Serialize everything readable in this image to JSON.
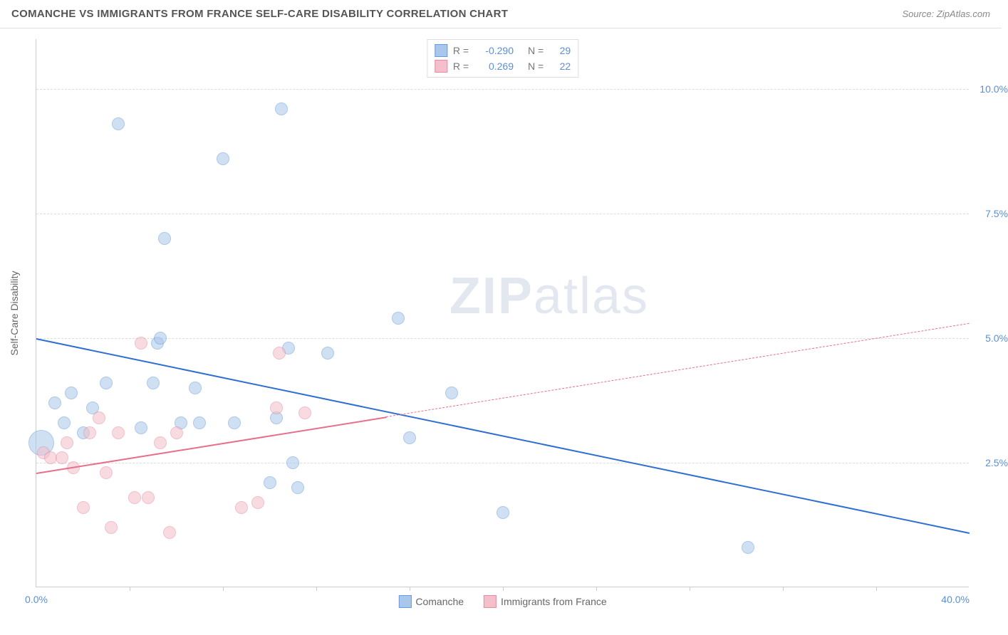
{
  "header": {
    "title": "COMANCHE VS IMMIGRANTS FROM FRANCE SELF-CARE DISABILITY CORRELATION CHART",
    "source_prefix": "Source: ",
    "source_link": "ZipAtlas.com"
  },
  "watermark": {
    "zip": "ZIP",
    "atlas": "atlas"
  },
  "chart": {
    "type": "scatter",
    "ylabel": "Self-Care Disability",
    "xlim": [
      0,
      40
    ],
    "ylim": [
      0,
      11
    ],
    "y_ticks": [
      {
        "v": 2.5,
        "label": "2.5%"
      },
      {
        "v": 5.0,
        "label": "5.0%"
      },
      {
        "v": 7.5,
        "label": "7.5%"
      },
      {
        "v": 10.0,
        "label": "10.0%"
      }
    ],
    "x_corner_left": "0.0%",
    "x_corner_right": "40.0%",
    "x_tick_positions": [
      4,
      8,
      12,
      16,
      20,
      24,
      28,
      32,
      36
    ],
    "background_color": "#ffffff",
    "grid_color": "#dddddd",
    "axis_color": "#cccccc",
    "tick_label_color": "#5b8fd6",
    "point_radius": 9,
    "point_opacity": 0.55,
    "series": [
      {
        "key": "comanche",
        "label": "Comanche",
        "fill": "#a9c7ea",
        "stroke": "#6a9bd8",
        "trend_color": "#2e6fd1",
        "trend": {
          "x1": 0,
          "y1": 5.0,
          "x2": 40,
          "y2": 1.1,
          "solid_until": 40
        },
        "R": "-0.290",
        "N": "29",
        "points": [
          [
            0.2,
            2.9,
            18
          ],
          [
            0.8,
            3.7
          ],
          [
            1.2,
            3.3
          ],
          [
            1.5,
            3.9
          ],
          [
            2.0,
            3.1
          ],
          [
            2.4,
            3.6
          ],
          [
            3.0,
            4.1
          ],
          [
            3.5,
            9.3
          ],
          [
            4.5,
            3.2
          ],
          [
            5.0,
            4.1
          ],
          [
            5.2,
            4.9
          ],
          [
            5.3,
            5.0
          ],
          [
            5.5,
            7.0
          ],
          [
            6.2,
            3.3
          ],
          [
            6.8,
            4.0
          ],
          [
            7.0,
            3.3
          ],
          [
            8.0,
            8.6
          ],
          [
            8.5,
            3.3
          ],
          [
            10.0,
            2.1
          ],
          [
            10.3,
            3.4
          ],
          [
            10.5,
            9.6
          ],
          [
            10.8,
            4.8
          ],
          [
            11.0,
            2.5
          ],
          [
            11.2,
            2.0
          ],
          [
            12.5,
            4.7
          ],
          [
            15.5,
            5.4
          ],
          [
            16.0,
            3.0
          ],
          [
            17.8,
            3.9
          ],
          [
            20.0,
            1.5
          ],
          [
            30.5,
            0.8
          ]
        ]
      },
      {
        "key": "france",
        "label": "Immigrants from France",
        "fill": "#f2bfca",
        "stroke": "#e88ba1",
        "trend_color": "#e76f8c",
        "trend": {
          "x1": 0,
          "y1": 2.3,
          "x2": 40,
          "y2": 5.3,
          "solid_until": 15
        },
        "R": "0.269",
        "N": "22",
        "points": [
          [
            0.3,
            2.7
          ],
          [
            0.6,
            2.6
          ],
          [
            1.1,
            2.6
          ],
          [
            1.3,
            2.9
          ],
          [
            1.6,
            2.4
          ],
          [
            2.0,
            1.6
          ],
          [
            2.3,
            3.1
          ],
          [
            2.7,
            3.4
          ],
          [
            3.0,
            2.3
          ],
          [
            3.2,
            1.2
          ],
          [
            3.5,
            3.1
          ],
          [
            4.2,
            1.8
          ],
          [
            4.5,
            4.9
          ],
          [
            4.8,
            1.8
          ],
          [
            5.3,
            2.9
          ],
          [
            5.7,
            1.1
          ],
          [
            6.0,
            3.1
          ],
          [
            8.8,
            1.6
          ],
          [
            9.5,
            1.7
          ],
          [
            10.3,
            3.6
          ],
          [
            10.4,
            4.7
          ],
          [
            11.5,
            3.5
          ]
        ]
      }
    ],
    "legend_top": {
      "r_label": "R = ",
      "n_label": "N = "
    }
  }
}
